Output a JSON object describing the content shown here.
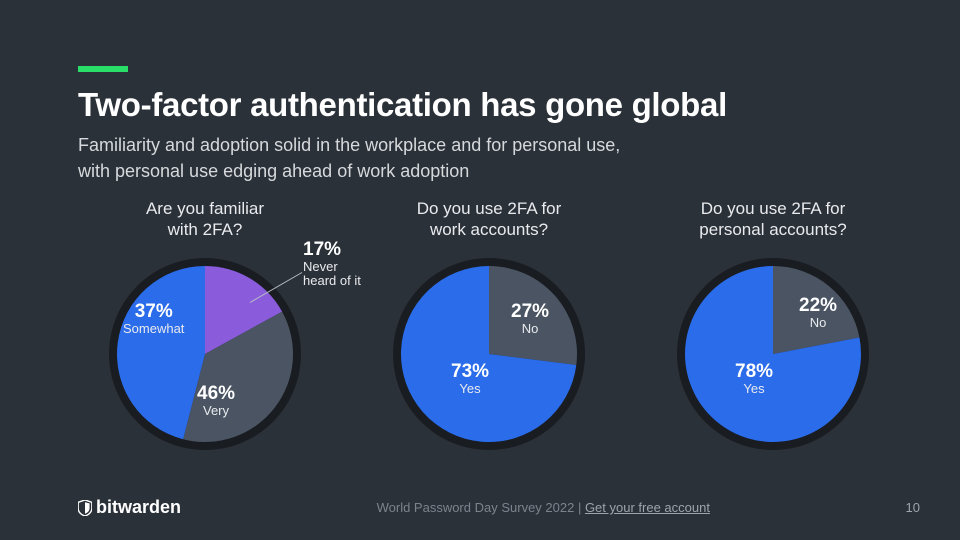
{
  "accent_color": "#2ade6a",
  "background_color": "#2b3139",
  "title": "Two-factor authentication has gone global",
  "subtitle_line1": "Familiarity and adoption solid in the workplace and for personal use,",
  "subtitle_line2": "with personal use edging ahead of work adoption",
  "text_color": "#e8eaed",
  "title_color": "#ffffff",
  "charts": [
    {
      "question_l1": "Are you familiar",
      "question_l2": "with 2FA?",
      "type": "pie",
      "ring_color": "#191c21",
      "slices": [
        {
          "label": "Very",
          "pct": 46,
          "pct_text": "46%",
          "color": "#2b6cea"
        },
        {
          "label": "Somewhat",
          "pct": 37,
          "pct_text": "37%",
          "color": "#4a5462"
        },
        {
          "label_l1": "Never",
          "label_l2": "heard of it",
          "pct": 17,
          "pct_text": "17%",
          "color": "#8a5cdc"
        }
      ],
      "labels": {
        "very": {
          "pct": "46%",
          "name": "Very"
        },
        "somewhat": {
          "pct": "37%",
          "name": "Somewhat"
        },
        "never_pct": "17%",
        "never_l1": "Never",
        "never_l2": "heard of it"
      }
    },
    {
      "question_l1": "Do you use 2FA for",
      "question_l2": "work accounts?",
      "type": "pie",
      "ring_color": "#191c21",
      "slices": [
        {
          "label": "Yes",
          "pct": 73,
          "pct_text": "73%",
          "color": "#2b6cea"
        },
        {
          "label": "No",
          "pct": 27,
          "pct_text": "27%",
          "color": "#4a5462"
        }
      ],
      "labels": {
        "yes": {
          "pct": "73%",
          "name": "Yes"
        },
        "no": {
          "pct": "27%",
          "name": "No"
        }
      }
    },
    {
      "question_l1": "Do you use 2FA for",
      "question_l2": "personal accounts?",
      "type": "pie",
      "ring_color": "#191c21",
      "slices": [
        {
          "label": "Yes",
          "pct": 78,
          "pct_text": "78%",
          "color": "#2b6cea"
        },
        {
          "label": "No",
          "pct": 22,
          "pct_text": "22%",
          "color": "#4a5462"
        }
      ],
      "labels": {
        "yes": {
          "pct": "78%",
          "name": "Yes"
        },
        "no": {
          "pct": "22%",
          "name": "No"
        }
      }
    }
  ],
  "brand_name": "bitwarden",
  "footer_center_static": "World Password Day Survey 2022 | ",
  "footer_center_link": "Get your free account",
  "page_number": "10",
  "colors": {
    "slice_blue": "#2b6cea",
    "slice_gray": "#4a5462",
    "slice_purple": "#8a5cdc",
    "ring": "#191c21"
  }
}
